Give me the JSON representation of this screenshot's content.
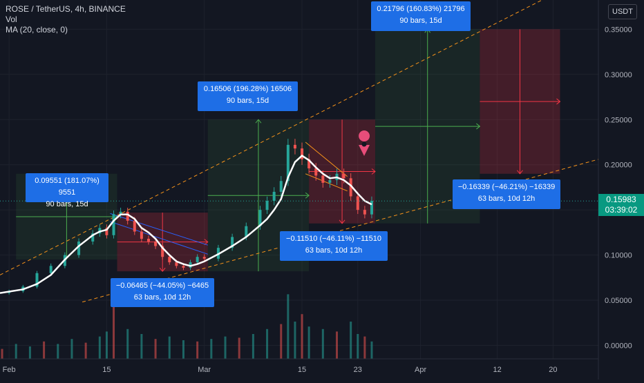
{
  "legend": {
    "symbol": "ROSE / TetherUS, 4h, BINANCE",
    "vol": "Vol",
    "ma": "MA (20, close, 0)"
  },
  "currency": "USDT",
  "last_price": {
    "price": "0.15983",
    "countdown": "03:39:02"
  },
  "colors": {
    "background": "#131722",
    "up": "#26a69a",
    "down": "#ef5350",
    "ma": "#ffffff",
    "trend": "#f7931a",
    "box": "#1e6ee6"
  },
  "annotations": [
    {
      "line1": "0.09551 (181.07%) 9551",
      "line2": "90 bars, 15d"
    },
    {
      "line1": "−0.06465 (−44.05%) −6465",
      "line2": "63 bars, 10d 12h"
    },
    {
      "line1": "0.16506 (196.28%) 16506",
      "line2": "90 bars, 15d"
    },
    {
      "line1": "−0.11510 (−46.11%) −11510",
      "line2": "63 bars, 10d 12h"
    },
    {
      "line1": "0.21796 (160.83%) 21796",
      "line2": "90 bars, 15d"
    },
    {
      "line1": "−0.16339 (−46.21%) −16339",
      "line2": "63 bars, 10d 12h"
    }
  ],
  "chart_data": {
    "type": "line",
    "title": "ROSE / TetherUS, 4h, BINANCE",
    "y_ticks": [
      "0.35000",
      "0.30000",
      "0.25000",
      "0.20000",
      "0.15000",
      "0.10000",
      "0.05000",
      "0.00000"
    ],
    "y_tick_values": [
      0.35,
      0.3,
      0.25,
      0.2,
      0.15,
      0.1,
      0.05,
      0.0
    ],
    "x_ticks": [
      "Feb",
      "15",
      "Mar",
      "15",
      "23",
      "Apr",
      "12",
      "20"
    ],
    "x_tick_days": [
      0,
      14,
      28,
      42,
      50,
      59,
      70,
      78
    ],
    "ylim": [
      0,
      0.36
    ],
    "xlim": [
      -1.3,
      84.5
    ],
    "ma_series": {
      "name": "MA (20, close, 0)",
      "x": [
        -1.3,
        2,
        4,
        6,
        8,
        10,
        12,
        13,
        14,
        15,
        16,
        17,
        18,
        19,
        20,
        21,
        22,
        23,
        24,
        25,
        26,
        27,
        28,
        30,
        32,
        34,
        36,
        37,
        38,
        39,
        40,
        41,
        42,
        43,
        44,
        45,
        46,
        47,
        48,
        49,
        50,
        51,
        52
      ],
      "y": [
        0.058,
        0.062,
        0.068,
        0.078,
        0.095,
        0.11,
        0.122,
        0.126,
        0.128,
        0.138,
        0.145,
        0.145,
        0.14,
        0.13,
        0.125,
        0.118,
        0.108,
        0.1,
        0.093,
        0.09,
        0.088,
        0.09,
        0.093,
        0.101,
        0.11,
        0.12,
        0.133,
        0.14,
        0.15,
        0.162,
        0.186,
        0.203,
        0.21,
        0.205,
        0.197,
        0.19,
        0.185,
        0.186,
        0.183,
        0.177,
        0.168,
        0.16,
        0.156
      ]
    },
    "close_series": {
      "x": [
        -1.3,
        0,
        2,
        4,
        6,
        8,
        10,
        12,
        13,
        14,
        15,
        16,
        17,
        18,
        19,
        20,
        21,
        22,
        23,
        24,
        25,
        26,
        27,
        28,
        30,
        32,
        34,
        36,
        37,
        38,
        39,
        40,
        41,
        42,
        43,
        44,
        45,
        46,
        47,
        48,
        49,
        50,
        51,
        52
      ],
      "y": [
        0.058,
        0.06,
        0.065,
        0.08,
        0.088,
        0.1,
        0.115,
        0.124,
        0.13,
        0.122,
        0.145,
        0.148,
        0.138,
        0.126,
        0.118,
        0.115,
        0.11,
        0.098,
        0.092,
        0.088,
        0.086,
        0.092,
        0.098,
        0.096,
        0.108,
        0.12,
        0.132,
        0.15,
        0.16,
        0.17,
        0.182,
        0.222,
        0.218,
        0.206,
        0.196,
        0.188,
        0.18,
        0.183,
        0.19,
        0.185,
        0.165,
        0.15,
        0.145,
        0.16
      ]
    },
    "volume": {
      "x": [
        -1,
        1,
        3,
        5,
        7,
        9,
        11,
        13,
        14,
        15,
        17,
        19,
        21,
        23,
        25,
        27,
        29,
        31,
        33,
        35,
        37,
        39,
        40,
        41,
        42,
        43,
        45,
        47,
        49,
        50,
        51,
        52
      ],
      "y": [
        0.008,
        0.012,
        0.01,
        0.014,
        0.012,
        0.016,
        0.013,
        0.018,
        0.022,
        0.048,
        0.024,
        0.02,
        0.016,
        0.018,
        0.015,
        0.014,
        0.016,
        0.018,
        0.017,
        0.02,
        0.024,
        0.028,
        0.052,
        0.03,
        0.036,
        0.026,
        0.024,
        0.022,
        0.03,
        0.02,
        0.018,
        0.014
      ]
    },
    "trendlines": [
      {
        "x": [
          -1.3,
          84.5
        ],
        "y": [
          0.078,
          0.414
        ]
      },
      {
        "x": [
          10.5,
          84.5
        ],
        "y": [
          0.048,
          0.206
        ]
      },
      {
        "x": [
          14.5,
          28.5
        ],
        "y": [
          0.146,
          0.111
        ]
      },
      {
        "x": [
          14.5,
          28.5
        ],
        "y": [
          0.137,
          0.101
        ]
      },
      {
        "x": [
          42.5,
          48.5
        ],
        "y": [
          0.225,
          0.187
        ]
      },
      {
        "x": [
          42.5,
          48.5
        ],
        "y": [
          0.19,
          0.171
        ]
      }
    ],
    "measures": [
      {
        "kind": "up",
        "x": [
          1,
          15.5
        ],
        "y": [
          0.095,
          0.19
        ]
      },
      {
        "kind": "down",
        "x": [
          15.5,
          28.5
        ],
        "y": [
          0.082,
          0.147
        ]
      },
      {
        "kind": "up",
        "x": [
          28.5,
          43
        ],
        "y": [
          0.082,
          0.25
        ]
      },
      {
        "kind": "down",
        "x": [
          43,
          52.5
        ],
        "y": [
          0.135,
          0.25
        ]
      },
      {
        "kind": "up",
        "x": [
          52.5,
          67.5
        ],
        "y": [
          0.135,
          0.35
        ]
      },
      {
        "kind": "down",
        "x": [
          67.5,
          79
        ],
        "y": [
          0.19,
          0.35
        ]
      }
    ],
    "last_price": 0.15983
  }
}
